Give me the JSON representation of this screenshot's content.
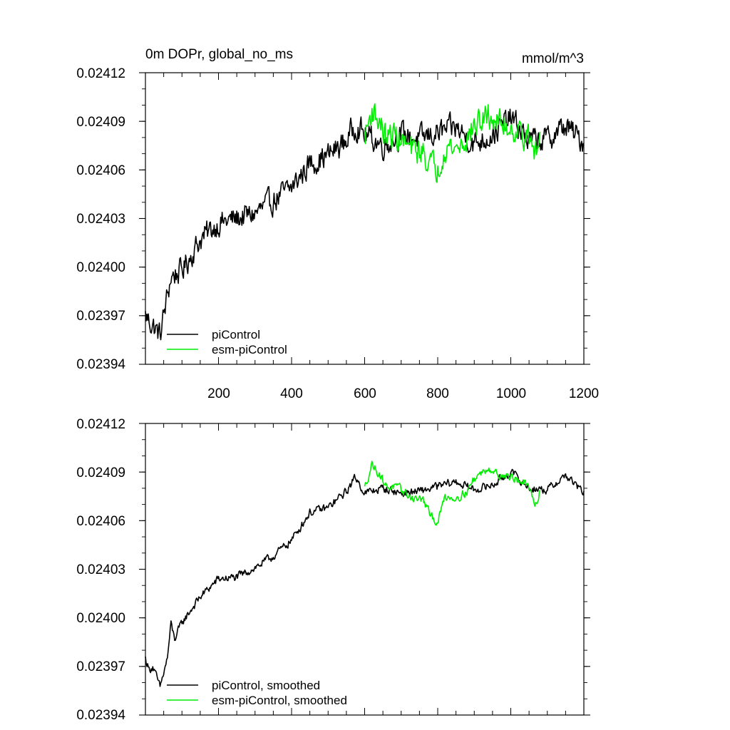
{
  "chart_data": [
    {
      "type": "line",
      "title": "0m DOPr, global_no_ms",
      "units": "mmol/m^3",
      "xlabel": "",
      "ylabel": "",
      "xlim": [
        0,
        1200
      ],
      "ylim": [
        0.02394,
        0.02412
      ],
      "y_ticks": [
        "0.02394",
        "0.02397",
        "0.02400",
        "0.02403",
        "0.02406",
        "0.02409",
        "0.02412"
      ],
      "x_ticks": [
        "200",
        "400",
        "600",
        "800",
        "1000",
        "1200"
      ],
      "legend_position": "bottom-left",
      "series": [
        {
          "name": "piControl",
          "color": "#000000",
          "x": [
            0,
            40,
            70,
            100,
            150,
            200,
            250,
            300,
            350,
            400,
            450,
            500,
            550,
            575,
            600,
            650,
            700,
            750,
            800,
            850,
            900,
            950,
            1000,
            1050,
            1100,
            1150,
            1200
          ],
          "y": [
            0.02397,
            0.023958,
            0.023994,
            0.023998,
            0.024017,
            0.024027,
            0.02403,
            0.024033,
            0.024041,
            0.024049,
            0.024064,
            0.024069,
            0.024078,
            0.024088,
            0.024082,
            0.024075,
            0.024082,
            0.024079,
            0.024083,
            0.024086,
            0.024076,
            0.024082,
            0.024092,
            0.024078,
            0.024079,
            0.024087,
            0.024077
          ],
          "noise": 1.2e-05
        },
        {
          "name": "esm-piControl",
          "color": "#00ee00",
          "x": [
            600,
            620,
            640,
            660,
            680,
            700,
            730,
            760,
            780,
            800,
            820,
            850,
            880,
            900,
            940,
            960,
            1000,
            1040,
            1070,
            1080
          ],
          "y": [
            0.02408,
            0.024097,
            0.02409,
            0.024079,
            0.024082,
            0.024078,
            0.024072,
            0.024071,
            0.024064,
            0.02406,
            0.024075,
            0.024073,
            0.024079,
            0.024087,
            0.024093,
            0.02409,
            0.024086,
            0.024082,
            0.02407,
            0.02408
          ],
          "noise": 1.3e-05
        }
      ]
    },
    {
      "type": "line",
      "title": "",
      "xlabel": "",
      "ylabel": "",
      "xlim": [
        0,
        1200
      ],
      "ylim": [
        0.02394,
        0.02412
      ],
      "y_ticks": [
        "0.02394",
        "0.02397",
        "0.02400",
        "0.02403",
        "0.02406",
        "0.02409",
        "0.02412"
      ],
      "legend_position": "bottom-left",
      "series": [
        {
          "name": "piControl, smoothed",
          "color": "#000000",
          "x": [
            0,
            10,
            20,
            40,
            60,
            70,
            80,
            100,
            150,
            200,
            250,
            300,
            350,
            400,
            450,
            500,
            550,
            575,
            600,
            650,
            700,
            750,
            800,
            850,
            900,
            950,
            1000,
            1050,
            1100,
            1150,
            1200
          ],
          "y": [
            0.023975,
            0.023968,
            0.02397,
            0.023957,
            0.023975,
            0.023996,
            0.023987,
            0.023997,
            0.024013,
            0.024024,
            0.024025,
            0.024031,
            0.024038,
            0.024048,
            0.024065,
            0.024068,
            0.024078,
            0.024087,
            0.024077,
            0.02408,
            0.024077,
            0.024078,
            0.024081,
            0.024084,
            0.024079,
            0.024082,
            0.02409,
            0.02408,
            0.024079,
            0.024088,
            0.024077
          ],
          "noise": 4e-06
        },
        {
          "name": "esm-piControl, smoothed",
          "color": "#00ee00",
          "x": [
            600,
            620,
            640,
            660,
            680,
            700,
            730,
            760,
            780,
            800,
            820,
            850,
            880,
            900,
            940,
            960,
            1000,
            1040,
            1070,
            1080
          ],
          "y": [
            0.02408,
            0.024095,
            0.024089,
            0.024081,
            0.024081,
            0.024079,
            0.024074,
            0.024073,
            0.024063,
            0.024059,
            0.024075,
            0.024074,
            0.024078,
            0.024086,
            0.024093,
            0.024089,
            0.024087,
            0.024083,
            0.02407,
            0.024079
          ],
          "noise": 4e-06
        }
      ]
    }
  ]
}
